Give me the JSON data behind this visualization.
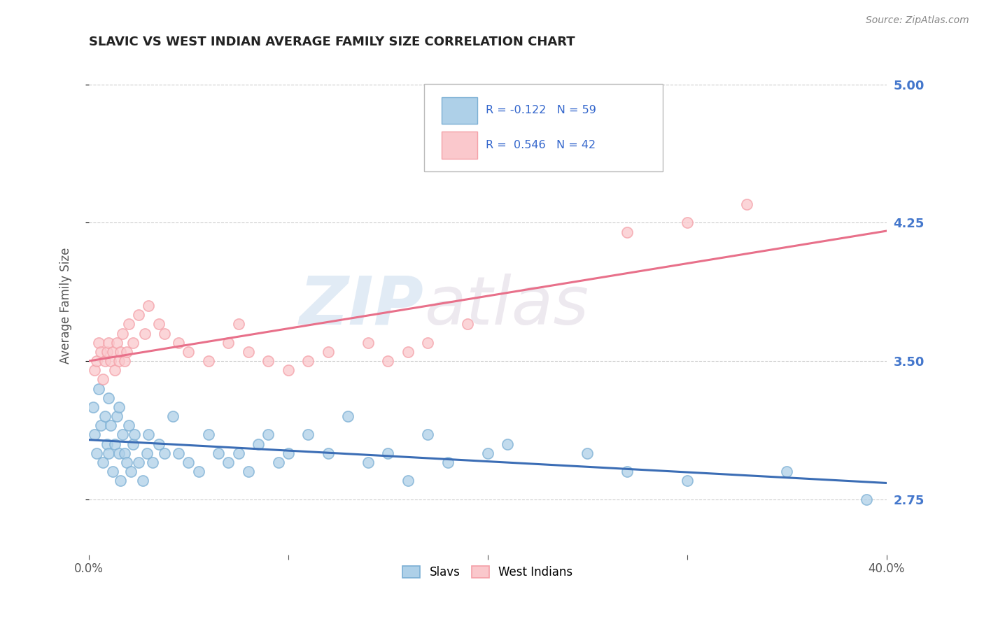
{
  "title": "SLAVIC VS WEST INDIAN AVERAGE FAMILY SIZE CORRELATION CHART",
  "source": "Source: ZipAtlas.com",
  "ylabel": "Average Family Size",
  "xlim": [
    0.0,
    40.0
  ],
  "ylim": [
    2.45,
    5.15
  ],
  "yticks": [
    2.75,
    3.5,
    4.25,
    5.0
  ],
  "xticks": [
    0.0,
    10.0,
    20.0,
    30.0,
    40.0
  ],
  "xtick_labels": [
    "0.0%",
    "",
    "",
    "",
    "40.0%"
  ],
  "ytick_labels": [
    "2.75",
    "3.50",
    "4.25",
    "5.00"
  ],
  "slavs_color": "#7BAFD4",
  "slavs_face_color": "#AED0E8",
  "west_indians_color": "#F4A0A8",
  "west_indians_face_color": "#FAC8CC",
  "trend_slavs_color": "#3B6DB5",
  "trend_wi_color": "#E8708A",
  "R_slavs": -0.122,
  "N_slavs": 59,
  "R_wi": 0.546,
  "N_wi": 42,
  "legend_label_slavs": "Slavs",
  "legend_label_wi": "West Indians",
  "watermark_zip": "ZIP",
  "watermark_atlas": "atlas",
  "background_color": "#FFFFFF",
  "slavs_x": [
    0.2,
    0.3,
    0.4,
    0.5,
    0.6,
    0.7,
    0.8,
    0.9,
    1.0,
    1.0,
    1.1,
    1.2,
    1.3,
    1.4,
    1.5,
    1.5,
    1.6,
    1.7,
    1.8,
    1.9,
    2.0,
    2.1,
    2.2,
    2.3,
    2.5,
    2.7,
    2.9,
    3.0,
    3.2,
    3.5,
    3.8,
    4.2,
    4.5,
    5.0,
    5.5,
    6.0,
    6.5,
    7.0,
    7.5,
    8.0,
    8.5,
    9.0,
    9.5,
    10.0,
    11.0,
    12.0,
    13.0,
    14.0,
    15.0,
    16.0,
    17.0,
    18.0,
    20.0,
    21.0,
    25.0,
    27.0,
    30.0,
    35.0,
    39.0
  ],
  "slavs_y": [
    3.25,
    3.1,
    3.0,
    3.35,
    3.15,
    2.95,
    3.2,
    3.05,
    3.3,
    3.0,
    3.15,
    2.9,
    3.05,
    3.2,
    3.0,
    3.25,
    2.85,
    3.1,
    3.0,
    2.95,
    3.15,
    2.9,
    3.05,
    3.1,
    2.95,
    2.85,
    3.0,
    3.1,
    2.95,
    3.05,
    3.0,
    3.2,
    3.0,
    2.95,
    2.9,
    3.1,
    3.0,
    2.95,
    3.0,
    2.9,
    3.05,
    3.1,
    2.95,
    3.0,
    3.1,
    3.0,
    3.2,
    2.95,
    3.0,
    2.85,
    3.1,
    2.95,
    3.0,
    3.05,
    3.0,
    2.9,
    2.85,
    2.9,
    2.75
  ],
  "wi_x": [
    0.3,
    0.4,
    0.5,
    0.6,
    0.7,
    0.8,
    0.9,
    1.0,
    1.1,
    1.2,
    1.3,
    1.4,
    1.5,
    1.6,
    1.7,
    1.8,
    1.9,
    2.0,
    2.2,
    2.5,
    2.8,
    3.0,
    3.5,
    3.8,
    4.5,
    5.0,
    6.0,
    7.0,
    7.5,
    8.0,
    9.0,
    10.0,
    11.0,
    12.0,
    14.0,
    15.0,
    16.0,
    17.0,
    19.0,
    27.0,
    30.0,
    33.0
  ],
  "wi_y": [
    3.45,
    3.5,
    3.6,
    3.55,
    3.4,
    3.5,
    3.55,
    3.6,
    3.5,
    3.55,
    3.45,
    3.6,
    3.5,
    3.55,
    3.65,
    3.5,
    3.55,
    3.7,
    3.6,
    3.75,
    3.65,
    3.8,
    3.7,
    3.65,
    3.6,
    3.55,
    3.5,
    3.6,
    3.7,
    3.55,
    3.5,
    3.45,
    3.5,
    3.55,
    3.6,
    3.5,
    3.55,
    3.6,
    3.7,
    4.2,
    4.25,
    4.35
  ],
  "title_color": "#222222",
  "axis_label_color": "#555555",
  "tick_color": "#555555",
  "grid_color": "#CCCCCC",
  "right_ytick_color": "#4477CC",
  "legend_box_color": "#DDDDDD",
  "legend_text_color": "#3366CC"
}
